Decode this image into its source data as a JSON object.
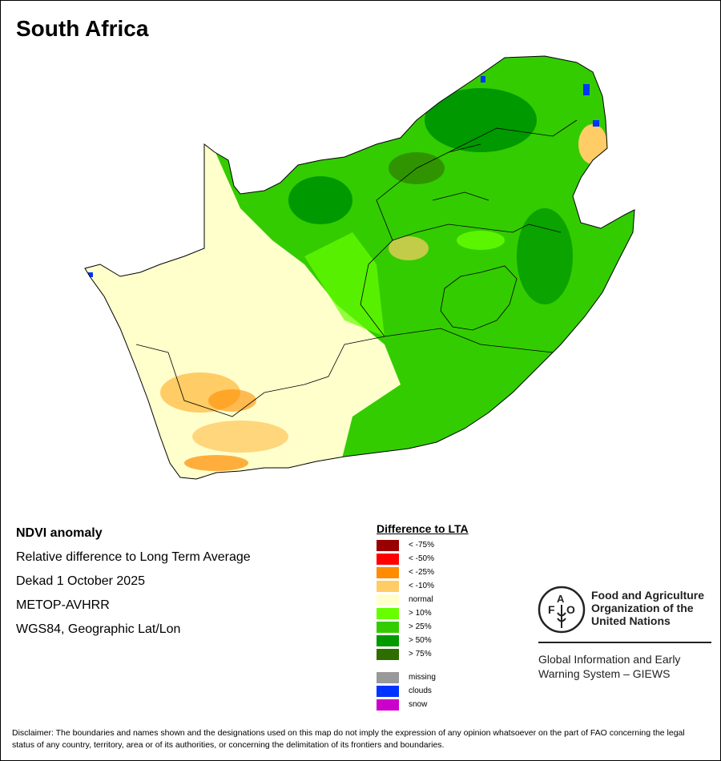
{
  "title": "South Africa",
  "info": {
    "product": "NDVI anomaly",
    "description": "Relative difference to Long Term Average",
    "period": "Dekad 1 October 2025",
    "sensor": "METOP-AVHRR",
    "projection": "WGS84, Geographic Lat/Lon"
  },
  "legend": {
    "title": "Difference to LTA",
    "classes": [
      {
        "label": "< -75%",
        "color": "#990000"
      },
      {
        "label": "< -50%",
        "color": "#ff0000"
      },
      {
        "label": "< -25%",
        "color": "#ff8c00"
      },
      {
        "label": "< -10%",
        "color": "#ffcc66"
      },
      {
        "label": "normal",
        "color": "#ffffcc"
      },
      {
        "label": "> 10%",
        "color": "#66ff00"
      },
      {
        "label": "> 25%",
        "color": "#33cc00"
      },
      {
        "label": "> 50%",
        "color": "#009900"
      },
      {
        "label": "> 75%",
        "color": "#2e6e00"
      }
    ],
    "other": [
      {
        "label": "missing",
        "color": "#999999"
      },
      {
        "label": "clouds",
        "color": "#0033ff"
      },
      {
        "label": "snow",
        "color": "#cc00cc"
      }
    ]
  },
  "logo": {
    "org_line1": "Food and Agriculture",
    "org_line2": "Organization of the",
    "org_line3": "United Nations",
    "emblem_text": "FAO FIAT PANIS",
    "giews_line1": "Global Information and Early",
    "giews_line2": "Warning System – GIEWS"
  },
  "disclaimer": "Disclaimer: The boundaries and names shown and the designations used on this map do not imply the expression of any opinion whatsoever on the part of FAO concerning the legal status of any country, territory, area or of its authorities, or concerning the delimitation of its frontiers and boundaries."
}
